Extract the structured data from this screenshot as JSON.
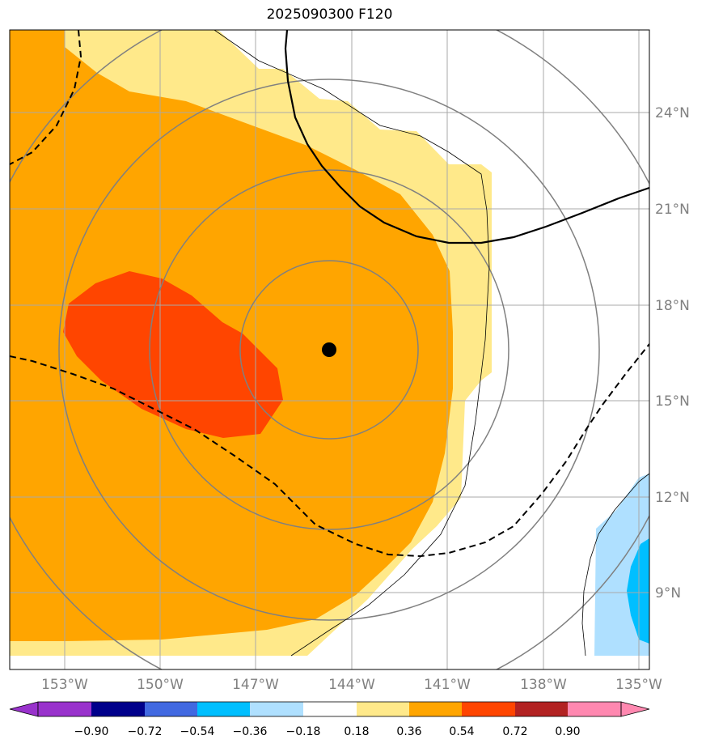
{
  "title": "2025090300 F120",
  "map": {
    "lon_ticks": [
      "153°W",
      "150°W",
      "147°W",
      "144°W",
      "141°W",
      "138°W",
      "135°W"
    ],
    "lat_ticks": [
      "24°N",
      "21°N",
      "18°N",
      "15°N",
      "12°N",
      "9°N"
    ],
    "center_marker": {
      "lon": "144.7°W",
      "lat": "16.6°N"
    }
  },
  "colorbar": {
    "labels": [
      "−0.90",
      "−0.72",
      "−0.54",
      "−0.36",
      "−0.18",
      "0.18",
      "0.36",
      "0.54",
      "0.72",
      "0.90"
    ],
    "colors": [
      "#9932cc",
      "#00008b",
      "#4169e1",
      "#00bfff",
      "#afe0ff",
      "#ffffff",
      "#ffe98a",
      "#ffa500",
      "#ff4500",
      "#b22222",
      "#ff88b0"
    ]
  },
  "fill_colors": {
    "light_yellow": "#ffe98a",
    "orange": "#ffa500",
    "red_orange": "#ff4500",
    "light_blue": "#afe0ff",
    "blue": "#00bfff"
  }
}
